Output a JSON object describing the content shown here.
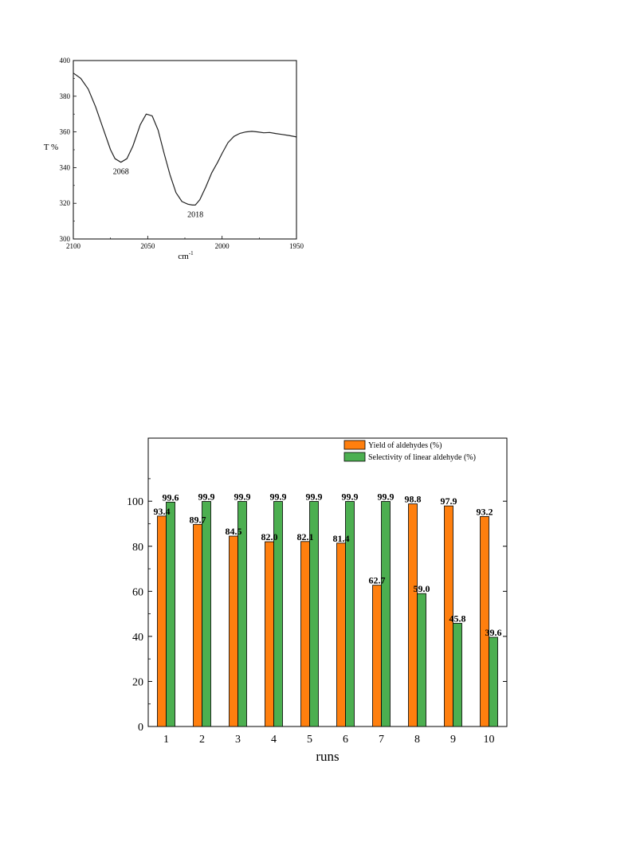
{
  "chart_data": [
    {
      "type": "line",
      "title": "",
      "xlabel": "cm",
      "xlabel_superscript": "-1",
      "ylabel": "T %",
      "xlim": [
        2100,
        1950
      ],
      "ylim": [
        300,
        400
      ],
      "x_ticks": [
        "2100",
        "2050",
        "2000",
        "1950"
      ],
      "y_ticks": [
        "300",
        "320",
        "340",
        "360",
        "380",
        "400"
      ],
      "x_tick_values": [
        2100,
        2050,
        2000,
        1950
      ],
      "y_tick_values": [
        300,
        320,
        340,
        360,
        380,
        400
      ],
      "series": [
        {
          "x": [
            2100,
            2095,
            2090,
            2085,
            2080,
            2075,
            2072,
            2068,
            2064,
            2060,
            2055,
            2051,
            2047,
            2043,
            2039,
            2035,
            2031,
            2027,
            2023,
            2020,
            2018,
            2015,
            2011,
            2007,
            2003,
            2000,
            1996,
            1992,
            1988,
            1984,
            1980,
            1976,
            1972,
            1968,
            1964,
            1960,
            1955,
            1950
          ],
          "y": [
            393,
            390,
            384,
            374,
            362,
            350,
            345,
            343,
            345,
            352,
            364,
            370,
            369,
            361,
            348,
            336,
            326,
            321,
            319.5,
            319,
            319,
            322,
            329,
            337,
            343,
            348,
            354,
            357.5,
            359.2,
            360,
            360.3,
            360,
            359.5,
            359.7,
            359.1,
            358.6,
            358,
            357.2
          ]
        }
      ],
      "annotations": [
        {
          "text": "2068",
          "x": 2068,
          "y": 343
        },
        {
          "text": "2018",
          "x": 2018,
          "y": 319
        }
      ],
      "grid": false
    },
    {
      "type": "bar",
      "title": "",
      "xlabel": "runs",
      "ylabel": "",
      "categories": [
        "1",
        "2",
        "3",
        "4",
        "5",
        "6",
        "7",
        "8",
        "9",
        "10"
      ],
      "ylim": [
        0,
        128
      ],
      "y_ticks": [
        "0",
        "20",
        "40",
        "60",
        "80",
        "100"
      ],
      "y_tick_values": [
        0,
        20,
        40,
        60,
        80,
        100
      ],
      "series": [
        {
          "name": "Yield of aldehydes (%)",
          "color": "#ff7f0e",
          "values": [
            93.4,
            89.7,
            84.5,
            82.0,
            82.1,
            81.4,
            62.7,
            98.8,
            97.9,
            93.2
          ],
          "labels": [
            "93.4",
            "89.7",
            "84.5",
            "82.0",
            "82.1",
            "81.4",
            "62.7",
            "98.8",
            "97.9",
            "93.2"
          ]
        },
        {
          "name": "Selectivity of linear aldehyde (%)",
          "color": "#4caf50",
          "values": [
            99.6,
            99.9,
            99.9,
            99.9,
            99.9,
            99.9,
            99.9,
            59.0,
            45.8,
            39.6
          ],
          "labels": [
            "99.6",
            "99.9",
            "99.9",
            "99.9",
            "99.9",
            "99.9",
            "99.9",
            "59.0",
            "45.8",
            "39.6"
          ]
        }
      ],
      "legend": "top-right",
      "grid": false
    }
  ]
}
